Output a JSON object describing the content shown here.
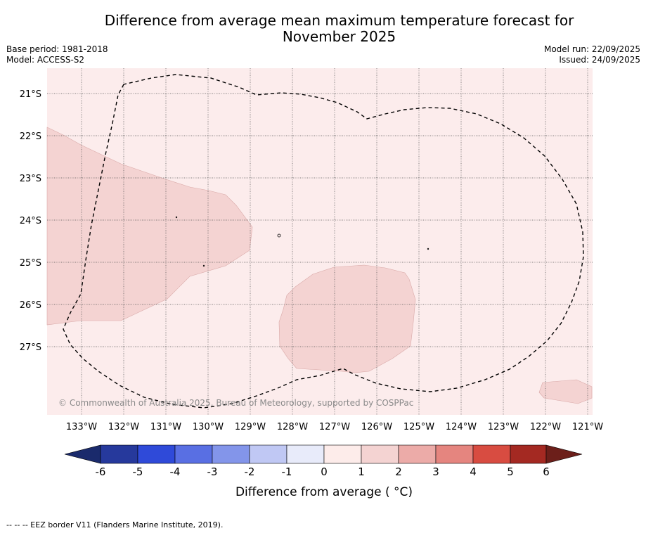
{
  "title": "Difference from average mean maximum temperature forecast for November 2025",
  "title_line1": "Difference from average mean maximum temperature forecast for",
  "title_line2": "November 2025",
  "base_period": "Base period: 1981-2018",
  "model": "Model: ACCESS-S2",
  "model_run": "Model run: 22/09/2025",
  "issued": "Issued: 24/09/2025",
  "copyright": "© Commonwealth of Australia 2025, Bureau of Meteorology, supported by COSPPac",
  "footer_legend": "--  --  -- EEZ border V11 (Flanders Marine Institute, 2019).",
  "map": {
    "lon_ticks": [
      "133°W",
      "132°W",
      "131°W",
      "130°W",
      "129°W",
      "128°W",
      "127°W",
      "126°W",
      "125°W",
      "124°W",
      "123°W",
      "122°W",
      "121°W"
    ],
    "lat_ticks": [
      "21°S",
      "22°S",
      "23°S",
      "24°S",
      "25°S",
      "26°S",
      "27°S"
    ],
    "background_category": "0 to 1",
    "anomaly_regions": [
      "1 to 2 (west)",
      "1 to 2 (south-central)",
      "1 to 2 (south-east)"
    ]
  },
  "colorbar": {
    "label": "Difference from average ( °C)",
    "ticks": [
      "-6",
      "-5",
      "-4",
      "-3",
      "-2",
      "-1",
      "0",
      "1",
      "2",
      "3",
      "4",
      "5",
      "6"
    ],
    "colors": [
      "#26399c",
      "#2f4ad9",
      "#596fe3",
      "#8395ea",
      "#c0c8f4",
      "#e8ebfa",
      "#fdecea",
      "#f4d3d2",
      "#ecaba8",
      "#e5857f",
      "#d84c41",
      "#a42922"
    ],
    "under_color": "#1a2a6c",
    "over_color": "#6c1f1a"
  },
  "colors": {
    "sea_base": "#fcecec",
    "anomaly_fill": "#f4d3d2",
    "grid": "#555555"
  }
}
